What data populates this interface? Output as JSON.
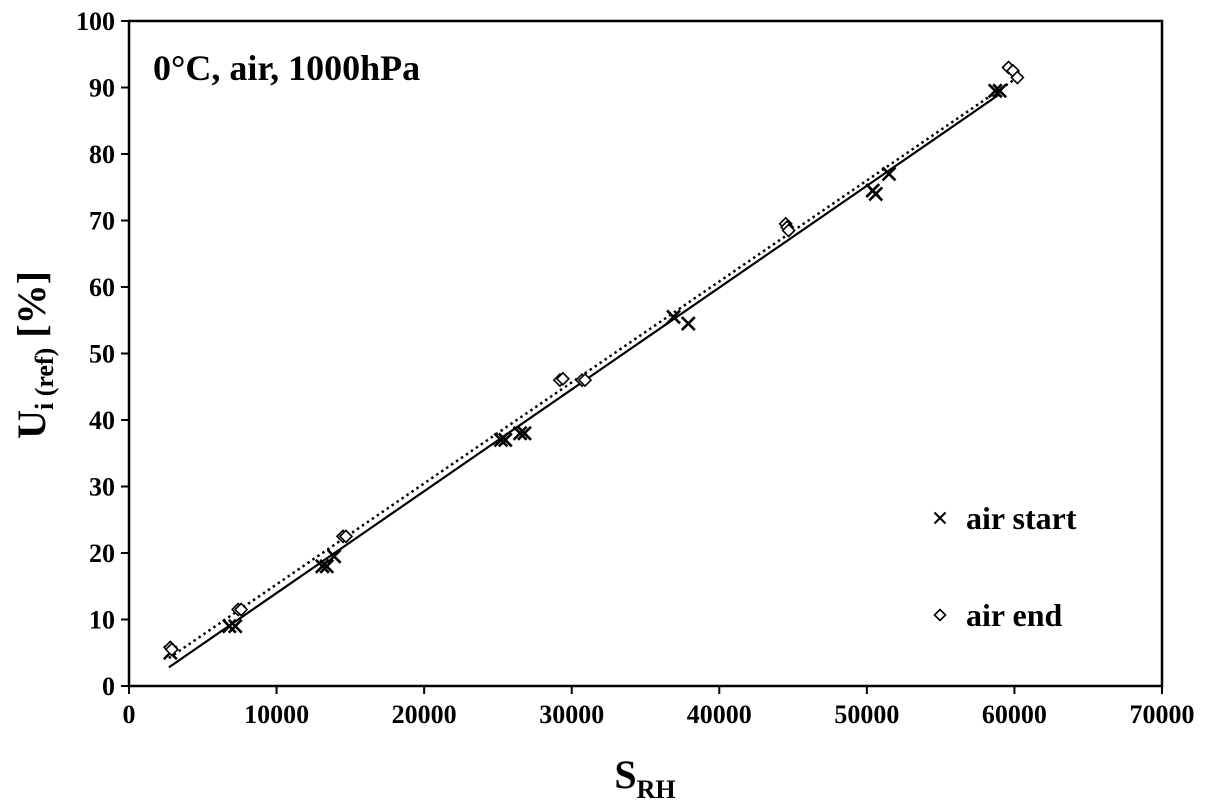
{
  "chart_data": {
    "type": "scatter",
    "annotation": "0°C, air, 1000hPa",
    "xlabel": {
      "main": "S",
      "sub": "RH"
    },
    "ylabel": {
      "main": "U",
      "sub": "i (ref)",
      "suffix": " [%]"
    },
    "xlim": [
      0,
      70000
    ],
    "ylim": [
      0,
      100
    ],
    "x_ticks": [
      0,
      10000,
      20000,
      30000,
      40000,
      50000,
      60000,
      70000
    ],
    "y_ticks": [
      0,
      10,
      20,
      30,
      40,
      50,
      60,
      70,
      80,
      90,
      100
    ],
    "grid": false,
    "legend_position": "bottom-right",
    "series": [
      {
        "name": "air start",
        "marker": "x",
        "points": [
          [
            2800,
            5.0
          ],
          [
            6800,
            9.0
          ],
          [
            7200,
            9.0
          ],
          [
            13100,
            18.0
          ],
          [
            13400,
            18.0
          ],
          [
            13900,
            19.5
          ],
          [
            25200,
            37.0
          ],
          [
            25500,
            37.0
          ],
          [
            26500,
            38.0
          ],
          [
            26800,
            38.0
          ],
          [
            36900,
            55.5
          ],
          [
            37900,
            54.5
          ],
          [
            50400,
            74.5
          ],
          [
            50600,
            74.0
          ],
          [
            51500,
            77.0
          ],
          [
            58700,
            89.5
          ],
          [
            59000,
            89.5
          ]
        ],
        "trendline": {
          "style": "solid",
          "x": [
            2700,
            59000
          ],
          "y": [
            2.8,
            89.0
          ]
        }
      },
      {
        "name": "air end",
        "marker": "diamond",
        "points": [
          [
            2800,
            5.8
          ],
          [
            2900,
            5.5
          ],
          [
            7400,
            11.5
          ],
          [
            7600,
            11.5
          ],
          [
            14500,
            22.5
          ],
          [
            14700,
            22.5
          ],
          [
            29200,
            46.0
          ],
          [
            29400,
            46.2
          ],
          [
            30700,
            46.0
          ],
          [
            30900,
            46.0
          ],
          [
            44500,
            69.5
          ],
          [
            44600,
            69.0
          ],
          [
            44700,
            68.5
          ],
          [
            59600,
            93.0
          ],
          [
            59900,
            92.5
          ],
          [
            60200,
            91.5
          ]
        ],
        "trendline": {
          "style": "dotted",
          "x": [
            2700,
            60000
          ],
          "y": [
            4.2,
            91.2
          ]
        }
      }
    ]
  }
}
